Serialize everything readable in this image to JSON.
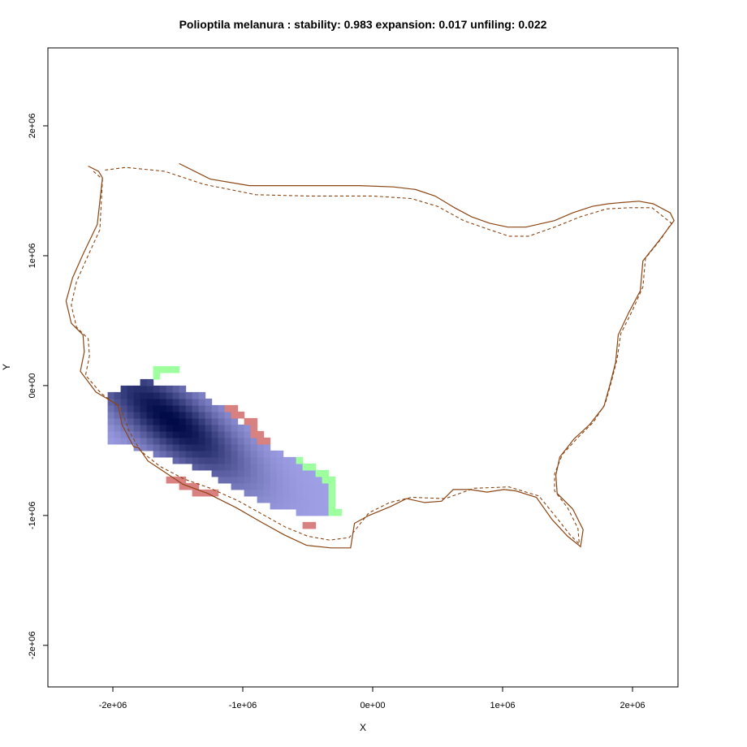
{
  "chart_data": {
    "type": "heatmap",
    "title": "Polioptila melanura : stability: 0.983 expansion: 0.017 unfiling: 0.022",
    "xlabel": "X",
    "ylabel": "Y",
    "xlim": [
      -2500000,
      2350000
    ],
    "ylim": [
      -2320000,
      2600000
    ],
    "x_ticks": [
      {
        "value": -2000000,
        "label": "-2e+06"
      },
      {
        "value": -1000000,
        "label": "-1e+06"
      },
      {
        "value": 0,
        "label": "0e+00"
      },
      {
        "value": 1000000,
        "label": "1e+06"
      },
      {
        "value": 2000000,
        "label": "2e+06"
      }
    ],
    "y_ticks": [
      {
        "value": -2000000,
        "label": "-2e+06"
      },
      {
        "value": -1000000,
        "label": "-1e+06"
      },
      {
        "value": 0,
        "label": "0e+00"
      },
      {
        "value": 1000000,
        "label": "1e+06"
      },
      {
        "value": 2000000,
        "label": "2e+06"
      }
    ],
    "metrics": {
      "stability": 0.983,
      "expansion": 0.017,
      "unfiling": 0.022
    },
    "colors": {
      "outline_solid": "#8B4513",
      "outline_dashed": "#8B4513",
      "stability_low": "#a0a0e6",
      "stability_high": "#000a46",
      "expansion": "#9eff9e",
      "unfilling": "#d98080"
    },
    "cell_size": 50000,
    "density_core": {
      "center": [
        -1560000,
        -260000
      ],
      "direction": [
        0.8,
        -0.6
      ],
      "sd_major": 480000,
      "sd_minor": 170000
    },
    "occupied_strip": [
      {
        "x": -2040000,
        "y": -250000,
        "half_width": 170000
      },
      {
        "x": -1800000,
        "y": -230000,
        "half_width": 260000
      },
      {
        "x": -1550000,
        "y": -280000,
        "half_width": 300000
      },
      {
        "x": -1300000,
        "y": -360000,
        "half_width": 290000
      },
      {
        "x": -1050000,
        "y": -520000,
        "half_width": 270000
      },
      {
        "x": -800000,
        "y": -690000,
        "half_width": 230000
      },
      {
        "x": -560000,
        "y": -780000,
        "half_width": 200000
      },
      {
        "x": -330000,
        "y": -850000,
        "half_width": 170000
      }
    ],
    "expansion_region": [
      [
        -1750000,
        120000
      ],
      [
        -1480000,
        150000
      ],
      [
        -1450000,
        100000
      ],
      [
        -1700000,
        70000
      ],
      [
        -600000,
        -540000
      ],
      [
        -450000,
        -620000
      ],
      [
        -280000,
        -720000
      ],
      [
        -260000,
        -1000000
      ],
      [
        -320000,
        -980000
      ],
      [
        -350000,
        -760000
      ],
      [
        -500000,
        -640000
      ],
      [
        -620000,
        -590000
      ]
    ],
    "unfilling_region": [
      [
        -1100000,
        -130000
      ],
      [
        -920000,
        -260000
      ],
      [
        -780000,
        -440000
      ],
      [
        -830000,
        -480000
      ],
      [
        -960000,
        -320000
      ],
      [
        -1130000,
        -180000
      ],
      [
        -1580000,
        -680000
      ],
      [
        -1200000,
        -820000
      ],
      [
        -1100000,
        -860000
      ],
      [
        -1350000,
        -840000
      ],
      [
        -1600000,
        -740000
      ],
      [
        -560000,
        -1040000
      ],
      [
        -420000,
        -1080000
      ],
      [
        -400000,
        -1120000
      ],
      [
        -560000,
        -1100000
      ]
    ],
    "outline_solid": [
      [
        -2190000,
        1690000
      ],
      [
        -2110000,
        1650000
      ],
      [
        -2080000,
        1600000
      ],
      [
        -2120000,
        1240000
      ],
      [
        -2230000,
        1010000
      ],
      [
        -2310000,
        830000
      ],
      [
        -2360000,
        650000
      ],
      [
        -2320000,
        480000
      ],
      [
        -2230000,
        390000
      ],
      [
        -2220000,
        260000
      ],
      [
        -2250000,
        110000
      ],
      [
        -2130000,
        -50000
      ],
      [
        -1960000,
        -150000
      ],
      [
        -1930000,
        -300000
      ],
      [
        -1840000,
        -470000
      ],
      [
        -1800000,
        -480000
      ],
      [
        -1730000,
        -580000
      ],
      [
        -1610000,
        -660000
      ],
      [
        -1460000,
        -760000
      ],
      [
        -1270000,
        -830000
      ],
      [
        -1050000,
        -940000
      ],
      [
        -860000,
        -1050000
      ],
      [
        -680000,
        -1150000
      ],
      [
        -510000,
        -1230000
      ],
      [
        -320000,
        -1250000
      ],
      [
        -170000,
        -1250000
      ],
      [
        -140000,
        -1060000
      ],
      [
        -30000,
        -1000000
      ],
      [
        140000,
        -930000
      ],
      [
        260000,
        -870000
      ],
      [
        400000,
        -900000
      ],
      [
        530000,
        -890000
      ],
      [
        620000,
        -800000
      ],
      [
        750000,
        -800000
      ],
      [
        880000,
        -820000
      ],
      [
        1010000,
        -800000
      ],
      [
        1100000,
        -810000
      ],
      [
        1260000,
        -860000
      ],
      [
        1380000,
        -1030000
      ],
      [
        1500000,
        -1160000
      ],
      [
        1600000,
        -1240000
      ],
      [
        1620000,
        -1110000
      ],
      [
        1540000,
        -950000
      ],
      [
        1420000,
        -830000
      ],
      [
        1410000,
        -690000
      ],
      [
        1440000,
        -550000
      ],
      [
        1550000,
        -410000
      ],
      [
        1670000,
        -300000
      ],
      [
        1780000,
        -160000
      ],
      [
        1830000,
        20000
      ],
      [
        1870000,
        180000
      ],
      [
        1890000,
        390000
      ],
      [
        1970000,
        560000
      ],
      [
        2060000,
        730000
      ],
      [
        2080000,
        960000
      ],
      [
        2200000,
        1110000
      ],
      [
        2320000,
        1270000
      ],
      [
        2290000,
        1330000
      ],
      [
        2160000,
        1400000
      ],
      [
        2050000,
        1420000
      ],
      [
        1920000,
        1410000
      ],
      [
        1810000,
        1400000
      ],
      [
        1690000,
        1380000
      ],
      [
        1540000,
        1330000
      ],
      [
        1400000,
        1270000
      ],
      [
        1180000,
        1220000
      ],
      [
        1040000,
        1220000
      ],
      [
        900000,
        1250000
      ],
      [
        760000,
        1300000
      ],
      [
        630000,
        1370000
      ],
      [
        480000,
        1460000
      ],
      [
        330000,
        1510000
      ],
      [
        160000,
        1530000
      ],
      [
        -100000,
        1540000
      ],
      [
        -500000,
        1540000
      ],
      [
        -950000,
        1540000
      ],
      [
        -1250000,
        1590000
      ],
      [
        -1490000,
        1710000
      ]
    ],
    "outline_dashed": [
      [
        -2150000,
        1650000
      ],
      [
        -2080000,
        1590000
      ],
      [
        -2100000,
        1200000
      ],
      [
        -2200000,
        980000
      ],
      [
        -2280000,
        800000
      ],
      [
        -2320000,
        620000
      ],
      [
        -2280000,
        450000
      ],
      [
        -2190000,
        360000
      ],
      [
        -2180000,
        230000
      ],
      [
        -2210000,
        80000
      ],
      [
        -2090000,
        -60000
      ],
      [
        -1940000,
        -170000
      ],
      [
        -1880000,
        -340000
      ],
      [
        -1790000,
        -500000
      ],
      [
        -1640000,
        -620000
      ],
      [
        -1450000,
        -720000
      ],
      [
        -1250000,
        -790000
      ],
      [
        -1030000,
        -890000
      ],
      [
        -850000,
        -990000
      ],
      [
        -670000,
        -1090000
      ],
      [
        -500000,
        -1160000
      ],
      [
        -330000,
        -1190000
      ],
      [
        -180000,
        -1170000
      ],
      [
        -30000,
        -980000
      ],
      [
        130000,
        -900000
      ],
      [
        300000,
        -860000
      ],
      [
        560000,
        -870000
      ],
      [
        780000,
        -790000
      ],
      [
        1050000,
        -780000
      ],
      [
        1280000,
        -850000
      ],
      [
        1410000,
        -1010000
      ],
      [
        1520000,
        -1150000
      ],
      [
        1590000,
        -1220000
      ],
      [
        1580000,
        -1100000
      ],
      [
        1500000,
        -940000
      ],
      [
        1400000,
        -810000
      ],
      [
        1400000,
        -680000
      ],
      [
        1460000,
        -530000
      ],
      [
        1580000,
        -400000
      ],
      [
        1700000,
        -280000
      ],
      [
        1790000,
        -140000
      ],
      [
        1840000,
        40000
      ],
      [
        1880000,
        200000
      ],
      [
        1910000,
        400000
      ],
      [
        2000000,
        580000
      ],
      [
        2080000,
        760000
      ],
      [
        2100000,
        980000
      ],
      [
        2220000,
        1130000
      ],
      [
        2300000,
        1250000
      ],
      [
        2150000,
        1370000
      ],
      [
        1980000,
        1370000
      ],
      [
        1800000,
        1360000
      ],
      [
        1600000,
        1300000
      ],
      [
        1400000,
        1220000
      ],
      [
        1200000,
        1150000
      ],
      [
        1050000,
        1150000
      ],
      [
        900000,
        1200000
      ],
      [
        700000,
        1270000
      ],
      [
        500000,
        1380000
      ],
      [
        300000,
        1440000
      ],
      [
        0,
        1460000
      ],
      [
        -500000,
        1460000
      ],
      [
        -900000,
        1470000
      ],
      [
        -1300000,
        1550000
      ],
      [
        -1600000,
        1650000
      ],
      [
        -1900000,
        1680000
      ],
      [
        -2060000,
        1660000
      ]
    ]
  }
}
